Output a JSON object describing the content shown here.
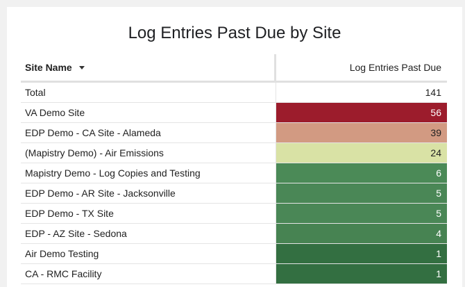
{
  "title": "Log Entries Past Due by Site",
  "columns": {
    "site": "Site Name",
    "count": "Log Entries Past Due"
  },
  "total": {
    "label": "Total",
    "value": "141"
  },
  "rows": [
    {
      "site": "VA Demo Site",
      "value": "56",
      "bg": "#9c1c2c",
      "fg": "#ffffff"
    },
    {
      "site": "EDP Demo - CA Site - Alameda",
      "value": "39",
      "bg": "#d29a82",
      "fg": "#212121"
    },
    {
      "site": "(Mapistry Demo) - Air Emissions",
      "value": "24",
      "bg": "#d9e2a5",
      "fg": "#212121"
    },
    {
      "site": "Mapistry Demo - Log Copies and Testing",
      "value": "6",
      "bg": "#4b8a57",
      "fg": "#ffffff"
    },
    {
      "site": "EDP Demo - AR Site - Jacksonville",
      "value": "5",
      "bg": "#4a8756",
      "fg": "#ffffff"
    },
    {
      "site": "EDP Demo - TX Site",
      "value": "5",
      "bg": "#4a8756",
      "fg": "#ffffff"
    },
    {
      "site": "EDP - AZ Site - Sedona",
      "value": "4",
      "bg": "#478352",
      "fg": "#ffffff"
    },
    {
      "site": "Air Demo Testing",
      "value": "1",
      "bg": "#336f41",
      "fg": "#ffffff"
    },
    {
      "site": "CA - RMC Facility",
      "value": "1",
      "bg": "#336f41",
      "fg": "#ffffff"
    }
  ]
}
